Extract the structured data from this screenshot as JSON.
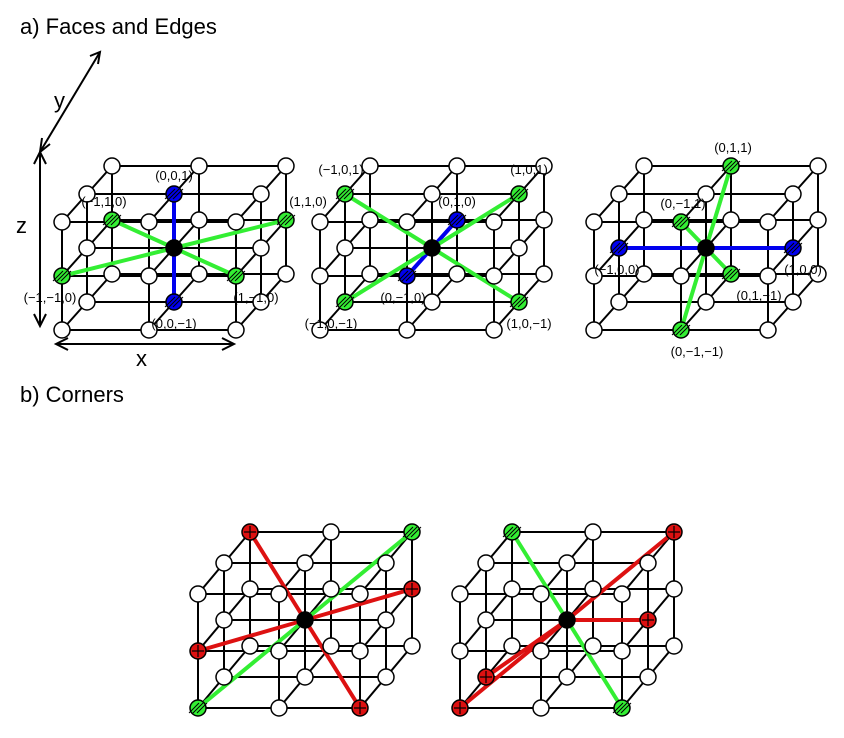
{
  "sections": {
    "a_title": "a) Faces and Edges",
    "b_title": "b) Corners"
  },
  "axes": {
    "x": "x",
    "y": "y",
    "z": "z"
  },
  "colors": {
    "face": "#0000ee",
    "edge": "#33ee33",
    "corner": "#dd1111",
    "center": "#000000",
    "node_fill": "#ffffff",
    "line": "#000000"
  },
  "lattice": {
    "nodes_per_axis": 3,
    "center": [
      1,
      1,
      1
    ],
    "description_axes": [
      "x",
      "y",
      "z"
    ]
  },
  "panels": [
    {
      "id": "a1",
      "highlights": [
        {
          "offset": [
            0,
            0,
            1
          ],
          "kind": "face",
          "label": "(0,0,1)"
        },
        {
          "offset": [
            0,
            0,
            -1
          ],
          "kind": "face",
          "label": "(0,0,−1)"
        },
        {
          "offset": [
            -1,
            1,
            0
          ],
          "kind": "edge",
          "label": "(−1,1,0)"
        },
        {
          "offset": [
            1,
            1,
            0
          ],
          "kind": "edge",
          "label": "(1,1,0)"
        },
        {
          "offset": [
            -1,
            -1,
            0
          ],
          "kind": "edge",
          "label": "(−1,−1,0)"
        },
        {
          "offset": [
            1,
            -1,
            0
          ],
          "kind": "edge",
          "label": "(1,−1,0)"
        }
      ]
    },
    {
      "id": "a2",
      "highlights": [
        {
          "offset": [
            0,
            1,
            0
          ],
          "kind": "face",
          "label": "(0,1,0)"
        },
        {
          "offset": [
            0,
            -1,
            0
          ],
          "kind": "face",
          "label": "(0,−1,0)"
        },
        {
          "offset": [
            -1,
            0,
            1
          ],
          "kind": "edge",
          "label": "(−1,0,1)"
        },
        {
          "offset": [
            1,
            0,
            1
          ],
          "kind": "edge",
          "label": "(1,0,1)"
        },
        {
          "offset": [
            -1,
            0,
            -1
          ],
          "kind": "edge",
          "label": "(−1,0,−1)"
        },
        {
          "offset": [
            1,
            0,
            -1
          ],
          "kind": "edge",
          "label": "(1,0,−1)"
        }
      ]
    },
    {
      "id": "a3",
      "highlights": [
        {
          "offset": [
            -1,
            0,
            0
          ],
          "kind": "face",
          "label": "(−1,0,0)"
        },
        {
          "offset": [
            1,
            0,
            0
          ],
          "kind": "face",
          "label": "(1,0,0)"
        },
        {
          "offset": [
            0,
            1,
            1
          ],
          "kind": "edge",
          "label": "(0,1,1)"
        },
        {
          "offset": [
            0,
            -1,
            -1
          ],
          "kind": "edge",
          "label": "(0,−1,−1)"
        },
        {
          "offset": [
            0,
            -1,
            1
          ],
          "kind": "edge",
          "label": "(0,−1,1)"
        },
        {
          "offset": [
            0,
            1,
            -1
          ],
          "kind": "edge",
          "label": "(0,1,−1)"
        }
      ]
    },
    {
      "id": "b1",
      "highlights": [
        {
          "offset": [
            -1,
            1,
            1
          ],
          "kind": "corner",
          "label": ""
        },
        {
          "offset": [
            1,
            -1,
            -1
          ],
          "kind": "corner",
          "label": ""
        },
        {
          "offset": [
            -1,
            -1,
            0
          ],
          "kind": "corner",
          "label": ""
        },
        {
          "offset": [
            1,
            1,
            0
          ],
          "kind": "corner",
          "label": ""
        },
        {
          "offset": [
            1,
            1,
            1
          ],
          "kind": "edge",
          "label": ""
        },
        {
          "offset": [
            -1,
            -1,
            -1
          ],
          "kind": "edge",
          "label": ""
        }
      ]
    },
    {
      "id": "b2",
      "highlights": [
        {
          "offset": [
            1,
            1,
            1
          ],
          "kind": "corner",
          "label": ""
        },
        {
          "offset": [
            -1,
            -1,
            -1
          ],
          "kind": "corner",
          "label": ""
        },
        {
          "offset": [
            1,
            0,
            0
          ],
          "kind": "corner",
          "label": ""
        },
        {
          "offset": [
            -1,
            0,
            -1
          ],
          "kind": "corner",
          "label": ""
        },
        {
          "offset": [
            -1,
            1,
            1
          ],
          "kind": "edge",
          "label": ""
        },
        {
          "offset": [
            1,
            -1,
            -1
          ],
          "kind": "edge",
          "label": ""
        }
      ]
    }
  ]
}
